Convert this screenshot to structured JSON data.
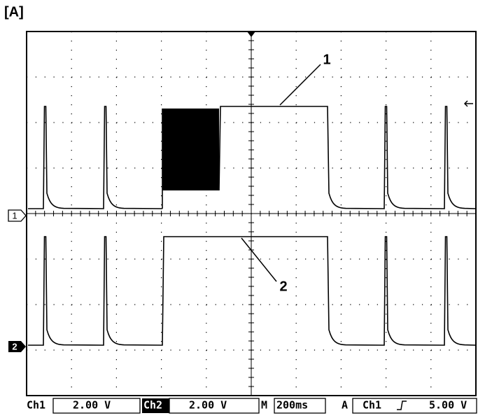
{
  "label": "[A]",
  "annotations": [
    "1",
    "2"
  ],
  "channel_markers": [
    "1",
    "2"
  ],
  "status_bar": {
    "ch1_label": "Ch1",
    "ch1_scale": "2.00 V",
    "ch2_label": "Ch2",
    "ch2_scale": "2.00 V",
    "time_label": "M",
    "time_scale": "200ms",
    "trigger_label": "A",
    "trigger_source": "Ch1",
    "trigger_level": "5.00 V"
  }
}
